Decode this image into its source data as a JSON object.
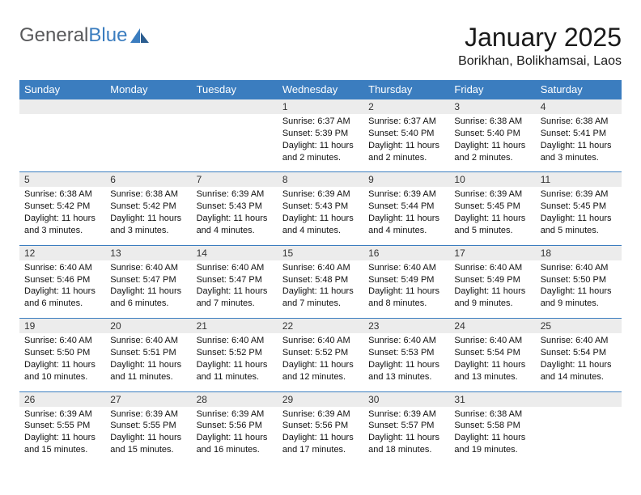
{
  "logo": {
    "word1": "General",
    "word2": "Blue"
  },
  "title": "January 2025",
  "location": "Borikhan, Bolikhamsai, Laos",
  "colors": {
    "header_bg": "#3b7dbf",
    "header_text": "#ffffff",
    "daynum_bg": "#ececec",
    "border": "#3b7dbf",
    "logo_gray": "#58595b",
    "logo_blue": "#3b7dbf"
  },
  "weekdays": [
    "Sunday",
    "Monday",
    "Tuesday",
    "Wednesday",
    "Thursday",
    "Friday",
    "Saturday"
  ],
  "weeks": [
    [
      {
        "n": "",
        "sr": "",
        "ss": "",
        "dl": ""
      },
      {
        "n": "",
        "sr": "",
        "ss": "",
        "dl": ""
      },
      {
        "n": "",
        "sr": "",
        "ss": "",
        "dl": ""
      },
      {
        "n": "1",
        "sr": "Sunrise: 6:37 AM",
        "ss": "Sunset: 5:39 PM",
        "dl": "Daylight: 11 hours and 2 minutes."
      },
      {
        "n": "2",
        "sr": "Sunrise: 6:37 AM",
        "ss": "Sunset: 5:40 PM",
        "dl": "Daylight: 11 hours and 2 minutes."
      },
      {
        "n": "3",
        "sr": "Sunrise: 6:38 AM",
        "ss": "Sunset: 5:40 PM",
        "dl": "Daylight: 11 hours and 2 minutes."
      },
      {
        "n": "4",
        "sr": "Sunrise: 6:38 AM",
        "ss": "Sunset: 5:41 PM",
        "dl": "Daylight: 11 hours and 3 minutes."
      }
    ],
    [
      {
        "n": "5",
        "sr": "Sunrise: 6:38 AM",
        "ss": "Sunset: 5:42 PM",
        "dl": "Daylight: 11 hours and 3 minutes."
      },
      {
        "n": "6",
        "sr": "Sunrise: 6:38 AM",
        "ss": "Sunset: 5:42 PM",
        "dl": "Daylight: 11 hours and 3 minutes."
      },
      {
        "n": "7",
        "sr": "Sunrise: 6:39 AM",
        "ss": "Sunset: 5:43 PM",
        "dl": "Daylight: 11 hours and 4 minutes."
      },
      {
        "n": "8",
        "sr": "Sunrise: 6:39 AM",
        "ss": "Sunset: 5:43 PM",
        "dl": "Daylight: 11 hours and 4 minutes."
      },
      {
        "n": "9",
        "sr": "Sunrise: 6:39 AM",
        "ss": "Sunset: 5:44 PM",
        "dl": "Daylight: 11 hours and 4 minutes."
      },
      {
        "n": "10",
        "sr": "Sunrise: 6:39 AM",
        "ss": "Sunset: 5:45 PM",
        "dl": "Daylight: 11 hours and 5 minutes."
      },
      {
        "n": "11",
        "sr": "Sunrise: 6:39 AM",
        "ss": "Sunset: 5:45 PM",
        "dl": "Daylight: 11 hours and 5 minutes."
      }
    ],
    [
      {
        "n": "12",
        "sr": "Sunrise: 6:40 AM",
        "ss": "Sunset: 5:46 PM",
        "dl": "Daylight: 11 hours and 6 minutes."
      },
      {
        "n": "13",
        "sr": "Sunrise: 6:40 AM",
        "ss": "Sunset: 5:47 PM",
        "dl": "Daylight: 11 hours and 6 minutes."
      },
      {
        "n": "14",
        "sr": "Sunrise: 6:40 AM",
        "ss": "Sunset: 5:47 PM",
        "dl": "Daylight: 11 hours and 7 minutes."
      },
      {
        "n": "15",
        "sr": "Sunrise: 6:40 AM",
        "ss": "Sunset: 5:48 PM",
        "dl": "Daylight: 11 hours and 7 minutes."
      },
      {
        "n": "16",
        "sr": "Sunrise: 6:40 AM",
        "ss": "Sunset: 5:49 PM",
        "dl": "Daylight: 11 hours and 8 minutes."
      },
      {
        "n": "17",
        "sr": "Sunrise: 6:40 AM",
        "ss": "Sunset: 5:49 PM",
        "dl": "Daylight: 11 hours and 9 minutes."
      },
      {
        "n": "18",
        "sr": "Sunrise: 6:40 AM",
        "ss": "Sunset: 5:50 PM",
        "dl": "Daylight: 11 hours and 9 minutes."
      }
    ],
    [
      {
        "n": "19",
        "sr": "Sunrise: 6:40 AM",
        "ss": "Sunset: 5:50 PM",
        "dl": "Daylight: 11 hours and 10 minutes."
      },
      {
        "n": "20",
        "sr": "Sunrise: 6:40 AM",
        "ss": "Sunset: 5:51 PM",
        "dl": "Daylight: 11 hours and 11 minutes."
      },
      {
        "n": "21",
        "sr": "Sunrise: 6:40 AM",
        "ss": "Sunset: 5:52 PM",
        "dl": "Daylight: 11 hours and 11 minutes."
      },
      {
        "n": "22",
        "sr": "Sunrise: 6:40 AM",
        "ss": "Sunset: 5:52 PM",
        "dl": "Daylight: 11 hours and 12 minutes."
      },
      {
        "n": "23",
        "sr": "Sunrise: 6:40 AM",
        "ss": "Sunset: 5:53 PM",
        "dl": "Daylight: 11 hours and 13 minutes."
      },
      {
        "n": "24",
        "sr": "Sunrise: 6:40 AM",
        "ss": "Sunset: 5:54 PM",
        "dl": "Daylight: 11 hours and 13 minutes."
      },
      {
        "n": "25",
        "sr": "Sunrise: 6:40 AM",
        "ss": "Sunset: 5:54 PM",
        "dl": "Daylight: 11 hours and 14 minutes."
      }
    ],
    [
      {
        "n": "26",
        "sr": "Sunrise: 6:39 AM",
        "ss": "Sunset: 5:55 PM",
        "dl": "Daylight: 11 hours and 15 minutes."
      },
      {
        "n": "27",
        "sr": "Sunrise: 6:39 AM",
        "ss": "Sunset: 5:55 PM",
        "dl": "Daylight: 11 hours and 15 minutes."
      },
      {
        "n": "28",
        "sr": "Sunrise: 6:39 AM",
        "ss": "Sunset: 5:56 PM",
        "dl": "Daylight: 11 hours and 16 minutes."
      },
      {
        "n": "29",
        "sr": "Sunrise: 6:39 AM",
        "ss": "Sunset: 5:56 PM",
        "dl": "Daylight: 11 hours and 17 minutes."
      },
      {
        "n": "30",
        "sr": "Sunrise: 6:39 AM",
        "ss": "Sunset: 5:57 PM",
        "dl": "Daylight: 11 hours and 18 minutes."
      },
      {
        "n": "31",
        "sr": "Sunrise: 6:38 AM",
        "ss": "Sunset: 5:58 PM",
        "dl": "Daylight: 11 hours and 19 minutes."
      },
      {
        "n": "",
        "sr": "",
        "ss": "",
        "dl": ""
      }
    ]
  ]
}
